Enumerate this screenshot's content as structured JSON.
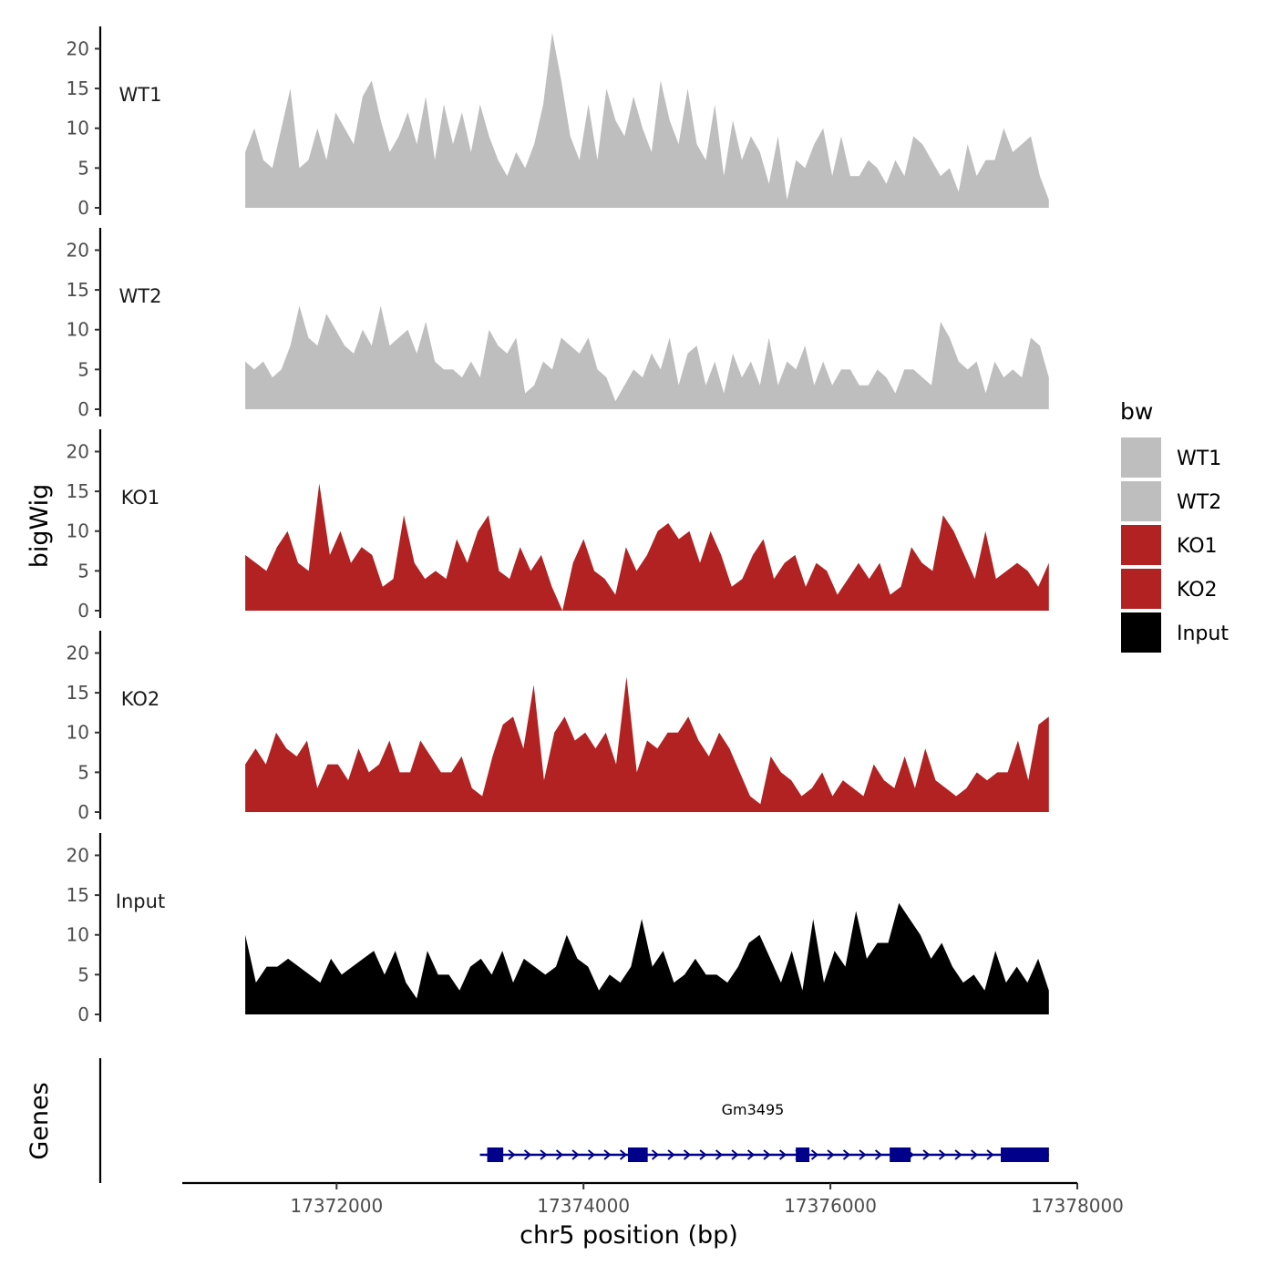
{
  "chart_data": {
    "type": "area",
    "title": "",
    "ylabel": "bigWig",
    "xlabel": "chr5 position (bp)",
    "genes_label": "Genes",
    "xlim": [
      17370750,
      17378000
    ],
    "ylim": [
      0,
      22
    ],
    "x_ticks": [
      17372000,
      17374000,
      17376000,
      17378000
    ],
    "x_tick_labels": [
      "17372000",
      "17374000",
      "17376000",
      "17378000"
    ],
    "y_ticks": [
      0,
      5,
      10,
      15,
      20
    ],
    "y_tick_labels": [
      "0",
      "5",
      "10",
      "15",
      "20"
    ],
    "x_start": 17371260,
    "x_end": 17377770,
    "legend": {
      "title": "bw",
      "position": "right",
      "entries": [
        {
          "label": "WT1",
          "color": "#bebebe"
        },
        {
          "label": "WT2",
          "color": "#bebebe"
        },
        {
          "label": "KO1",
          "color": "#b22222"
        },
        {
          "label": "KO2",
          "color": "#b22222"
        },
        {
          "label": "Input",
          "color": "#000000"
        }
      ]
    },
    "series": [
      {
        "name": "WT1",
        "color": "#bebebe",
        "values": [
          7,
          10,
          6,
          5,
          10,
          15,
          5,
          6,
          10,
          6,
          12,
          10,
          8,
          14,
          16,
          11,
          7,
          9,
          12,
          8,
          14,
          6,
          13,
          8,
          12,
          7,
          13,
          9,
          6,
          4,
          7,
          5,
          8,
          13,
          22,
          16,
          9,
          6,
          13,
          6,
          15,
          11,
          9,
          14,
          10,
          7,
          16,
          11,
          8,
          15,
          8,
          6,
          13,
          4,
          11,
          6,
          9,
          7,
          3,
          9,
          1,
          6,
          5,
          8,
          10,
          4,
          9,
          4,
          4,
          6,
          5,
          3,
          6,
          4,
          9,
          8,
          6,
          4,
          5,
          2,
          8,
          4,
          6,
          6,
          10,
          7,
          8,
          9,
          4,
          1
        ]
      },
      {
        "name": "WT2",
        "color": "#bebebe",
        "values": [
          6,
          5,
          6,
          4,
          5,
          8,
          13,
          9,
          8,
          12,
          10,
          8,
          7,
          10,
          8,
          13,
          8,
          9,
          10,
          7,
          11,
          6,
          5,
          5,
          4,
          6,
          4,
          10,
          8,
          7,
          9,
          2,
          3,
          6,
          5,
          9,
          8,
          7,
          9,
          5,
          4,
          1,
          3,
          5,
          4,
          7,
          5,
          9,
          3,
          7,
          8,
          3,
          6,
          2,
          7,
          4,
          6,
          3,
          9,
          3,
          6,
          5,
          8,
          3,
          6,
          3,
          5,
          5,
          3,
          3,
          5,
          4,
          2,
          5,
          5,
          4,
          3,
          11,
          9,
          6,
          5,
          6,
          2,
          6,
          4,
          5,
          4,
          9,
          8,
          4
        ]
      },
      {
        "name": "KO1",
        "color": "#b22222",
        "values": [
          7,
          6,
          5,
          8,
          10,
          6,
          5,
          16,
          7,
          10,
          6,
          8,
          7,
          3,
          4,
          12,
          6,
          4,
          5,
          4,
          9,
          6,
          10,
          12,
          5,
          4,
          8,
          5,
          7,
          3,
          0,
          6,
          9,
          5,
          4,
          2,
          8,
          5,
          7,
          10,
          11,
          9,
          10,
          6,
          10,
          7,
          3,
          4,
          7,
          9,
          4,
          6,
          7,
          3,
          6,
          5,
          2,
          4,
          6,
          4,
          6,
          2,
          3,
          8,
          6,
          5,
          12,
          10,
          7,
          4,
          10,
          4,
          5,
          6,
          5,
          3,
          6
        ]
      },
      {
        "name": "KO2",
        "color": "#b22222",
        "values": [
          6,
          8,
          6,
          10,
          8,
          7,
          9,
          3,
          6,
          6,
          4,
          8,
          5,
          6,
          9,
          5,
          5,
          9,
          7,
          5,
          5,
          7,
          3,
          2,
          7,
          11,
          12,
          8,
          16,
          4,
          10,
          12,
          9,
          10,
          8,
          10,
          6,
          17,
          5,
          9,
          8,
          10,
          10,
          12,
          9,
          7,
          10,
          8,
          5,
          2,
          1,
          7,
          5,
          4,
          2,
          3,
          5,
          2,
          4,
          3,
          2,
          6,
          4,
          3,
          7,
          3,
          8,
          4,
          3,
          2,
          3,
          5,
          4,
          5,
          5,
          9,
          4,
          11,
          12
        ]
      },
      {
        "name": "Input",
        "color": "#000000",
        "values": [
          10,
          4,
          6,
          6,
          7,
          6,
          5,
          4,
          7,
          5,
          6,
          7,
          8,
          5,
          8,
          4,
          2,
          8,
          5,
          5,
          3,
          6,
          7,
          5,
          8,
          4,
          7,
          6,
          5,
          6,
          10,
          7,
          6,
          3,
          5,
          4,
          6,
          12,
          6,
          8,
          4,
          5,
          7,
          5,
          5,
          4,
          6,
          9,
          10,
          7,
          4,
          8,
          3,
          12,
          4,
          8,
          6,
          13,
          7,
          9,
          9,
          14,
          12,
          10,
          7,
          9,
          6,
          4,
          5,
          3,
          8,
          4,
          6,
          4,
          7,
          3
        ]
      }
    ],
    "gene": {
      "name": "Gm3495",
      "start": 17373220,
      "end": 17377770,
      "strand": "+",
      "exons": [
        [
          17373220,
          17373350
        ],
        [
          17374360,
          17374520
        ],
        [
          17375720,
          17375830
        ],
        [
          17376480,
          17376650
        ],
        [
          17377380,
          17377770
        ]
      ],
      "color": "#00008b"
    }
  }
}
